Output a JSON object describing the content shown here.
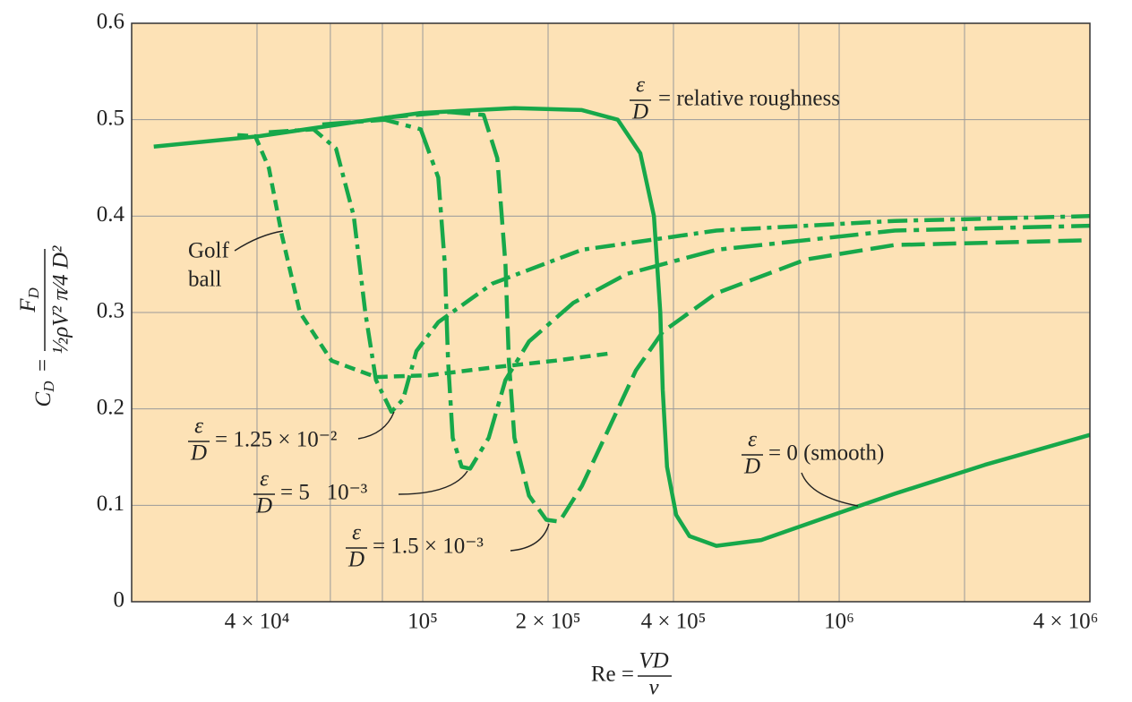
{
  "chart_data": {
    "type": "line",
    "xscale": "log",
    "grid": true,
    "xlim": [
      20000,
      4000000
    ],
    "ylim": [
      0,
      0.6
    ],
    "yticks": [
      0,
      0.1,
      0.2,
      0.3,
      0.4,
      0.5,
      0.6
    ],
    "xticks": [
      {
        "value": 40000,
        "label": "4 × 10⁴"
      },
      {
        "value": 100000,
        "label": "10⁵"
      },
      {
        "value": 200000,
        "label": "2 × 10⁵"
      },
      {
        "value": 400000,
        "label": "4 × 10⁵"
      },
      {
        "value": 1000000,
        "label": "10⁶"
      },
      {
        "value": 4000000,
        "label": "4 × 10⁶"
      }
    ],
    "xgrid_minor": [
      60000,
      80000,
      800000,
      2000000
    ],
    "xlabel": {
      "text": "Re =",
      "num": "VD",
      "den": "ν"
    },
    "ylabel": {
      "c": "C",
      "c_sub": "D",
      "eq": "=",
      "num": "F",
      "num_sub": "D",
      "den": "½ρV² π⁄4 D²"
    },
    "series": [
      {
        "name": "smooth",
        "color": "#17a84a",
        "dash": "solid",
        "x": [
          22600,
          40600,
          70000,
          98900,
          166000,
          241000,
          294000,
          333000,
          359000,
          372000,
          377000,
          386000,
          406000,
          437000,
          507000,
          650000,
          966000,
          1360000,
          2240000,
          4000000
        ],
        "values": [
          0.472,
          0.483,
          0.498,
          0.507,
          0.512,
          0.51,
          0.5,
          0.465,
          0.4,
          0.3,
          0.22,
          0.14,
          0.09,
          0.068,
          0.058,
          0.064,
          0.09,
          0.112,
          0.142,
          0.173
        ]
      },
      {
        "name": "1.5e-3",
        "color": "#17a84a",
        "dash": "dash",
        "x": [
          81000,
          115000,
          140000,
          151000,
          158000,
          161000,
          166000,
          180000,
          198000,
          213000,
          241000,
          280000,
          325000,
          377000,
          507000,
          832000,
          1360000,
          4000000
        ],
        "values": [
          0.502,
          0.508,
          0.505,
          0.46,
          0.35,
          0.25,
          0.17,
          0.11,
          0.085,
          0.083,
          0.12,
          0.18,
          0.24,
          0.28,
          0.32,
          0.355,
          0.37,
          0.375
        ]
      },
      {
        "name": "5e-3",
        "color": "#17a84a",
        "dash": "longdashdot",
        "x": [
          57400,
          81000,
          98900,
          109000,
          113000,
          115000,
          118000,
          124000,
          130000,
          144000,
          158000,
          180000,
          230000,
          309000,
          507000,
          1360000,
          4000000
        ],
        "values": [
          0.495,
          0.5,
          0.49,
          0.44,
          0.35,
          0.25,
          0.17,
          0.14,
          0.138,
          0.17,
          0.23,
          0.27,
          0.31,
          0.34,
          0.365,
          0.385,
          0.39
        ]
      },
      {
        "name": "1.25e-2",
        "color": "#17a84a",
        "dash": "dashdot",
        "x": [
          42700,
          54700,
          61900,
          68300,
          72800,
          77200,
          84100,
          89700,
          96600,
          109000,
          147000,
          241000,
          507000,
          1360000,
          4000000
        ],
        "values": [
          0.487,
          0.49,
          0.47,
          0.4,
          0.3,
          0.23,
          0.197,
          0.21,
          0.26,
          0.29,
          0.33,
          0.365,
          0.385,
          0.395,
          0.4
        ]
      },
      {
        "name": "golf ball",
        "color": "#17a84a",
        "dash": "shortdash",
        "x": [
          35900,
          39600,
          42700,
          45900,
          50700,
          60400,
          77200,
          104000,
          147000,
          208000,
          287000
        ],
        "values": [
          0.484,
          0.483,
          0.45,
          0.38,
          0.3,
          0.25,
          0.233,
          0.235,
          0.243,
          0.25,
          0.258
        ]
      }
    ],
    "annotations": [
      {
        "num": "ε",
        "den": "D",
        "text": "= relative roughness"
      },
      {
        "lines": [
          "Golf",
          "ball"
        ]
      },
      {
        "num": "ε",
        "den": "D",
        "text": "= 1.25 × 10⁻²"
      },
      {
        "num": "ε",
        "den": "D",
        "text": "= 5   10⁻³"
      },
      {
        "num": "ε",
        "den": "D",
        "text": "= 1.5 × 10⁻³"
      },
      {
        "num": "ε",
        "den": "D",
        "text": "= 0 (smooth)"
      }
    ]
  }
}
